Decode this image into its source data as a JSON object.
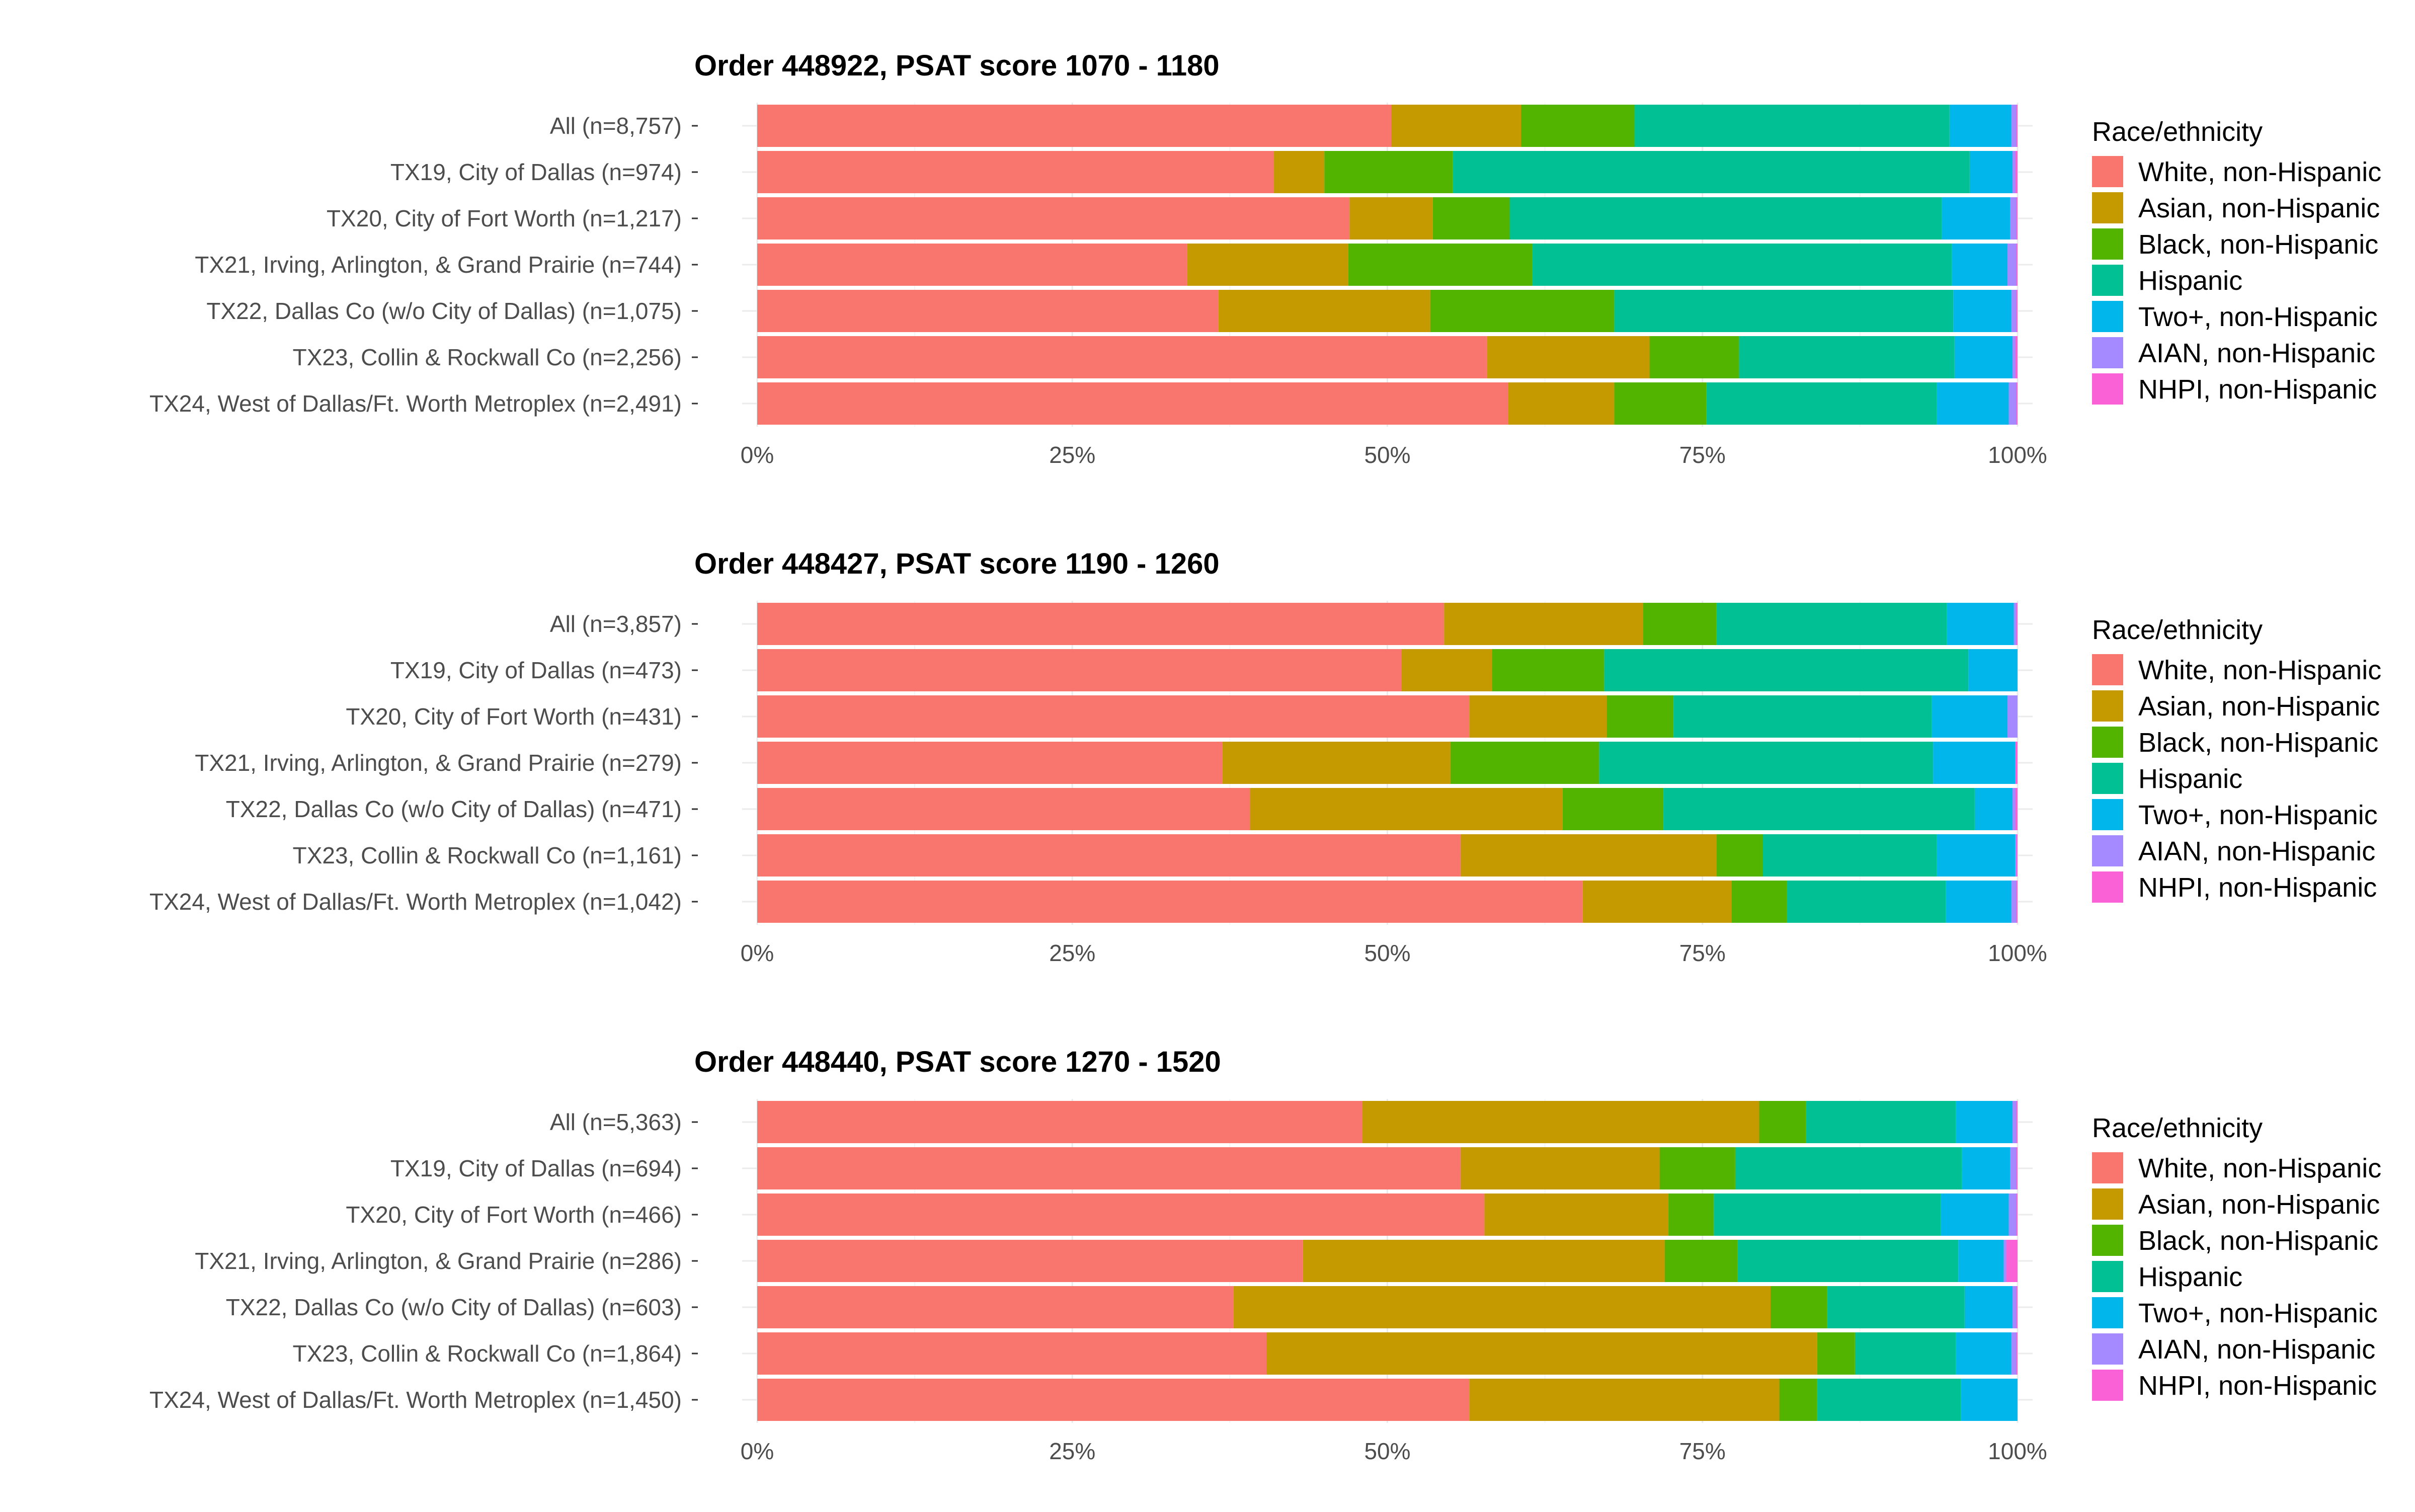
{
  "legend": {
    "title": "Race/ethnicity",
    "items": [
      {
        "label": "White, non-Hispanic",
        "color": "#F8766D"
      },
      {
        "label": "Asian, non-Hispanic",
        "color": "#C49A00"
      },
      {
        "label": "Black, non-Hispanic",
        "color": "#53B400"
      },
      {
        "label": "Hispanic",
        "color": "#00C094"
      },
      {
        "label": "Two+, non-Hispanic",
        "color": "#00B6EB"
      },
      {
        "label": "AIAN, non-Hispanic",
        "color": "#A58AFF"
      },
      {
        "label": "NHPI, non-Hispanic",
        "color": "#FB61D7"
      }
    ]
  },
  "x_ticks": [
    "0%",
    "25%",
    "50%",
    "75%",
    "100%"
  ],
  "chart_data": [
    {
      "type": "bar",
      "orientation": "horizontal-stacked-100",
      "title": "Order 448922, PSAT score 1070 - 1180",
      "xlim": [
        0,
        1
      ],
      "categories": [
        "All (n=8,757)",
        "TX19, City of Dallas (n=974)",
        "TX20, City of Fort Worth (n=1,217)",
        "TX21, Irving, Arlington, & Grand Prairie (n=744)",
        "TX22, Dallas Co (w/o City of Dallas) (n=1,075)",
        "TX23, Collin & Rockwall Co (n=2,256)",
        "TX24, West of Dallas/Ft. Worth Metroplex (n=2,491)"
      ],
      "series": [
        {
          "name": "White, non-Hispanic",
          "values": [
            0.503,
            0.41,
            0.47,
            0.341,
            0.366,
            0.579,
            0.596
          ]
        },
        {
          "name": "Asian, non-Hispanic",
          "values": [
            0.103,
            0.04,
            0.066,
            0.128,
            0.168,
            0.129,
            0.084
          ]
        },
        {
          "name": "Black, non-Hispanic",
          "values": [
            0.09,
            0.102,
            0.061,
            0.146,
            0.146,
            0.071,
            0.073
          ]
        },
        {
          "name": "Hispanic",
          "values": [
            0.25,
            0.41,
            0.343,
            0.333,
            0.269,
            0.171,
            0.183
          ]
        },
        {
          "name": "Two+, non-Hispanic",
          "values": [
            0.049,
            0.034,
            0.054,
            0.044,
            0.046,
            0.046,
            0.057
          ]
        },
        {
          "name": "AIAN, non-Hispanic",
          "values": [
            0.004,
            0.002,
            0.005,
            0.007,
            0.004,
            0.002,
            0.006
          ]
        },
        {
          "name": "NHPI, non-Hispanic",
          "values": [
            0.001,
            0.002,
            0.001,
            0.001,
            0.001,
            0.002,
            0.001
          ]
        }
      ]
    },
    {
      "type": "bar",
      "orientation": "horizontal-stacked-100",
      "title": "Order 448427, PSAT score 1190 - 1260",
      "xlim": [
        0,
        1
      ],
      "categories": [
        "All (n=3,857)",
        "TX19, City of Dallas (n=473)",
        "TX20, City of Fort Worth (n=431)",
        "TX21, Irving, Arlington, & Grand Prairie (n=279)",
        "TX22, Dallas Co (w/o City of Dallas) (n=471)",
        "TX23, Collin & Rockwall Co (n=1,161)",
        "TX24, West of Dallas/Ft. Worth Metroplex (n=1,042)"
      ],
      "series": [
        {
          "name": "White, non-Hispanic",
          "values": [
            0.545,
            0.511,
            0.565,
            0.369,
            0.391,
            0.558,
            0.655
          ]
        },
        {
          "name": "Asian, non-Hispanic",
          "values": [
            0.158,
            0.072,
            0.109,
            0.181,
            0.248,
            0.203,
            0.118
          ]
        },
        {
          "name": "Black, non-Hispanic",
          "values": [
            0.058,
            0.089,
            0.053,
            0.118,
            0.08,
            0.037,
            0.044
          ]
        },
        {
          "name": "Hispanic",
          "values": [
            0.183,
            0.289,
            0.205,
            0.265,
            0.247,
            0.138,
            0.126
          ]
        },
        {
          "name": "Two+, non-Hispanic",
          "values": [
            0.053,
            0.039,
            0.06,
            0.065,
            0.03,
            0.062,
            0.052
          ]
        },
        {
          "name": "AIAN, non-Hispanic",
          "values": [
            0.002,
            0.0,
            0.008,
            0.0,
            0.002,
            0.001,
            0.004
          ]
        },
        {
          "name": "NHPI, non-Hispanic",
          "values": [
            0.001,
            0.0,
            0.0,
            0.002,
            0.002,
            0.001,
            0.001
          ]
        }
      ]
    },
    {
      "type": "bar",
      "orientation": "horizontal-stacked-100",
      "title": "Order 448440, PSAT score 1270 - 1520",
      "xlim": [
        0,
        1
      ],
      "categories": [
        "All (n=5,363)",
        "TX19, City of Dallas (n=694)",
        "TX20, City of Fort Worth (n=466)",
        "TX21, Irving, Arlington, & Grand Prairie (n=286)",
        "TX22, Dallas Co (w/o City of Dallas) (n=603)",
        "TX23, Collin & Rockwall Co (n=1,864)",
        "TX24, West of Dallas/Ft. Worth Metroplex (n=1,450)"
      ],
      "series": [
        {
          "name": "White, non-Hispanic",
          "values": [
            0.48,
            0.558,
            0.577,
            0.433,
            0.378,
            0.404,
            0.565
          ]
        },
        {
          "name": "Asian, non-Hispanic",
          "values": [
            0.315,
            0.158,
            0.146,
            0.287,
            0.426,
            0.437,
            0.246
          ]
        },
        {
          "name": "Black, non-Hispanic",
          "values": [
            0.037,
            0.06,
            0.036,
            0.058,
            0.045,
            0.03,
            0.03
          ]
        },
        {
          "name": "Hispanic",
          "values": [
            0.119,
            0.18,
            0.18,
            0.175,
            0.109,
            0.08,
            0.114
          ]
        },
        {
          "name": "Two+, non-Hispanic",
          "values": [
            0.045,
            0.038,
            0.054,
            0.036,
            0.038,
            0.044,
            0.045
          ]
        },
        {
          "name": "AIAN, non-Hispanic",
          "values": [
            0.003,
            0.005,
            0.006,
            0.002,
            0.003,
            0.004,
            0.0
          ]
        },
        {
          "name": "NHPI, non-Hispanic",
          "values": [
            0.001,
            0.001,
            0.001,
            0.009,
            0.001,
            0.001,
            0.0
          ]
        }
      ]
    }
  ]
}
